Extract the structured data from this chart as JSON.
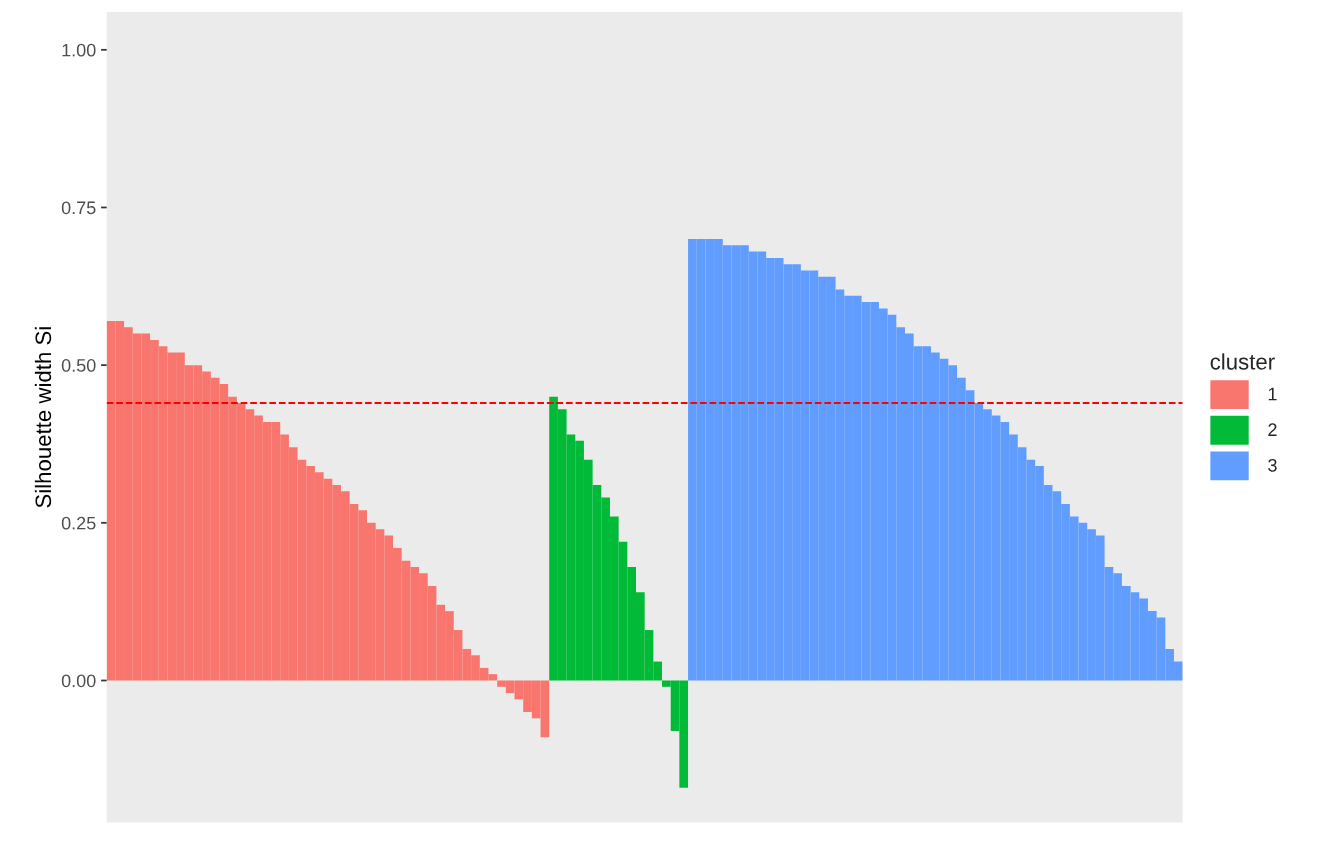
{
  "chart_data": {
    "type": "bar",
    "ylabel": "Silhouette width Si",
    "legend_title": "cluster",
    "legend": "right",
    "grid": false,
    "categories": [
      null,
      null,
      null,
      null,
      null,
      null,
      null,
      null,
      null,
      null,
      null,
      null,
      null,
      null,
      null,
      null,
      null,
      null,
      null,
      null,
      null,
      null,
      null,
      null,
      null,
      null,
      null,
      null,
      null,
      null,
      null,
      null,
      null,
      null,
      null,
      null,
      null,
      null,
      null,
      null,
      null,
      null,
      null,
      null,
      null,
      null,
      null,
      null,
      null,
      null,
      null,
      null,
      null,
      null,
      null,
      null,
      null,
      null,
      null,
      null,
      null,
      null,
      null,
      null,
      null,
      null,
      null,
      null,
      null,
      null,
      null,
      null,
      null,
      null,
      null,
      null,
      null,
      null,
      null,
      null,
      null,
      null,
      null,
      null,
      null,
      null,
      null,
      null,
      null,
      null,
      null,
      null,
      null,
      null,
      null,
      null,
      null,
      null,
      null,
      null,
      null,
      null,
      null,
      null,
      null,
      null,
      null,
      null,
      null,
      null,
      null,
      null,
      null,
      null,
      null,
      null,
      null,
      null,
      null,
      null,
      null,
      null,
      null,
      null
    ],
    "ylim": [
      -0.225,
      1.06
    ],
    "yticks": [
      {
        "value": 0,
        "label": "0.00"
      },
      {
        "value": 0.25,
        "label": "0.25"
      },
      {
        "value": 0.5,
        "label": "0.50"
      },
      {
        "value": 0.75,
        "label": "0.75"
      },
      {
        "value": 1,
        "label": "1.00"
      }
    ],
    "ref_lines": [
      {
        "axis": "y",
        "value": 0.44,
        "label": null,
        "color": "#ff0000",
        "line_style": "dashed"
      }
    ],
    "series": [
      {
        "name": "1",
        "color": "#f8766d",
        "values": [
          0.57,
          0.57,
          0.56,
          0.55,
          0.55,
          0.54,
          0.53,
          0.52,
          0.52,
          0.5,
          0.5,
          0.49,
          0.48,
          0.47,
          0.45,
          0.44,
          0.43,
          0.42,
          0.41,
          0.41,
          0.39,
          0.37,
          0.35,
          0.34,
          0.33,
          0.32,
          0.31,
          0.3,
          0.28,
          0.27,
          0.25,
          0.24,
          0.23,
          0.21,
          0.19,
          0.18,
          0.17,
          0.15,
          0.12,
          0.11,
          0.08,
          0.05,
          0.04,
          0.02,
          0.01,
          -0.01,
          -0.02,
          -0.03,
          -0.05,
          -0.06,
          -0.09,
          null,
          null,
          null,
          null,
          null,
          null,
          null,
          null,
          null,
          null,
          null,
          null,
          null,
          null,
          null,
          null,
          null,
          null,
          null,
          null,
          null,
          null,
          null,
          null,
          null,
          null,
          null,
          null,
          null,
          null,
          null,
          null,
          null,
          null,
          null,
          null,
          null,
          null,
          null,
          null,
          null,
          null,
          null,
          null,
          null,
          null,
          null,
          null,
          null,
          null,
          null,
          null,
          null,
          null,
          null,
          null,
          null,
          null,
          null,
          null,
          null,
          null,
          null,
          null,
          null,
          null,
          null,
          null,
          null,
          null,
          null,
          null,
          null
        ]
      },
      {
        "name": "2",
        "color": "#00ba38",
        "values": [
          null,
          null,
          null,
          null,
          null,
          null,
          null,
          null,
          null,
          null,
          null,
          null,
          null,
          null,
          null,
          null,
          null,
          null,
          null,
          null,
          null,
          null,
          null,
          null,
          null,
          null,
          null,
          null,
          null,
          null,
          null,
          null,
          null,
          null,
          null,
          null,
          null,
          null,
          null,
          null,
          null,
          null,
          null,
          null,
          null,
          null,
          null,
          null,
          null,
          null,
          null,
          0.45,
          0.43,
          0.39,
          0.38,
          0.35,
          0.31,
          0.29,
          0.26,
          0.22,
          0.18,
          0.14,
          0.08,
          0.03,
          -0.01,
          -0.08,
          -0.17,
          null,
          null,
          null,
          null,
          null,
          null,
          null,
          null,
          null,
          null,
          null,
          null,
          null,
          null,
          null,
          null,
          null,
          null,
          null,
          null,
          null,
          null,
          null,
          null,
          null,
          null,
          null,
          null,
          null,
          null,
          null,
          null,
          null,
          null,
          null,
          null,
          null,
          null,
          null,
          null,
          null,
          null,
          null,
          null,
          null,
          null,
          null,
          null,
          null,
          null,
          null,
          null,
          null,
          null,
          null,
          null,
          null
        ]
      },
      {
        "name": "3",
        "color": "#619cff",
        "values": [
          null,
          null,
          null,
          null,
          null,
          null,
          null,
          null,
          null,
          null,
          null,
          null,
          null,
          null,
          null,
          null,
          null,
          null,
          null,
          null,
          null,
          null,
          null,
          null,
          null,
          null,
          null,
          null,
          null,
          null,
          null,
          null,
          null,
          null,
          null,
          null,
          null,
          null,
          null,
          null,
          null,
          null,
          null,
          null,
          null,
          null,
          null,
          null,
          null,
          null,
          null,
          null,
          null,
          null,
          null,
          null,
          null,
          null,
          null,
          null,
          null,
          null,
          null,
          null,
          null,
          null,
          null,
          0.7,
          0.7,
          0.7,
          0.7,
          0.69,
          0.69,
          0.69,
          0.68,
          0.68,
          0.67,
          0.67,
          0.66,
          0.66,
          0.65,
          0.65,
          0.64,
          0.64,
          0.62,
          0.61,
          0.61,
          0.6,
          0.6,
          0.59,
          0.58,
          0.56,
          0.55,
          0.53,
          0.53,
          0.52,
          0.51,
          0.5,
          0.48,
          0.46,
          0.44,
          0.43,
          0.42,
          0.41,
          0.39,
          0.37,
          0.35,
          0.34,
          0.31,
          0.3,
          0.28,
          0.26,
          0.25,
          0.24,
          0.23,
          0.18,
          0.17,
          0.15,
          0.14,
          0.13,
          0.11,
          0.1,
          0.05,
          0.03
        ]
      }
    ]
  }
}
